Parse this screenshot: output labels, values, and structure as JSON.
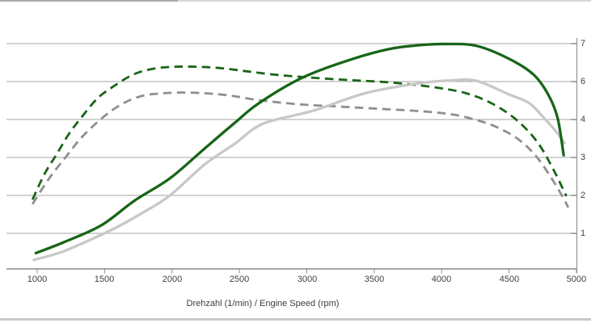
{
  "window": {
    "edge_strip_top_left_color": "#a9a9a9",
    "edge_strip_top_right_color": "#d6d6d6",
    "edge_strip_bottom_color": "#c9c9c9"
  },
  "chart_data": {
    "type": "line",
    "title": "",
    "xlabel": "Drehzahl (1/min) / Engine Speed (rpm)",
    "ylabel": "",
    "xlim": [
      770,
      5000
    ],
    "ylim": [
      0,
      6.2
    ],
    "grid": "horizontal gridlines on",
    "legend": "none",
    "x_ticks": [
      1000,
      1500,
      2000,
      2500,
      3000,
      3500,
      4000,
      4500,
      5000
    ],
    "x_tick_labels": [
      "1000",
      "1500",
      "2000",
      "2500",
      "3000",
      "3500",
      "4000",
      "4500",
      "5000"
    ],
    "right_axis_labels": [
      "7",
      "6",
      "4",
      "3",
      "2",
      "1"
    ],
    "right_axis_label_gridline_values": [
      6,
      5,
      4,
      3,
      2,
      1
    ],
    "gridline_values": [
      1,
      2,
      3,
      4,
      5,
      6
    ],
    "colors": {
      "dark_green": "#176517",
      "light_gray": "#c8c8c8",
      "mid_gray": "#8f8f8f",
      "gridline": "#a6a6a6",
      "axis": "#999999",
      "tick": "#8c8c8c",
      "label_text": "#3f3f3f"
    },
    "series": [
      {
        "name": "gray-dashed-curve",
        "style": "dashed",
        "color": "#8f8f8f",
        "points": [
          [
            965,
            1.77
          ],
          [
            1085,
            2.43
          ],
          [
            1205,
            2.98
          ],
          [
            1325,
            3.51
          ],
          [
            1475,
            4.02
          ],
          [
            1625,
            4.4
          ],
          [
            1775,
            4.62
          ],
          [
            1925,
            4.69
          ],
          [
            2075,
            4.71
          ],
          [
            2255,
            4.69
          ],
          [
            2435,
            4.63
          ],
          [
            2645,
            4.51
          ],
          [
            2945,
            4.4
          ],
          [
            3245,
            4.34
          ],
          [
            3545,
            4.28
          ],
          [
            3845,
            4.22
          ],
          [
            4085,
            4.13
          ],
          [
            4265,
            3.98
          ],
          [
            4415,
            3.79
          ],
          [
            4565,
            3.49
          ],
          [
            4695,
            3.06
          ],
          [
            4805,
            2.51
          ],
          [
            4895,
            1.98
          ],
          [
            4940,
            1.68
          ]
        ]
      },
      {
        "name": "green-dashed-curve",
        "style": "dashed",
        "color": "#176517",
        "points": [
          [
            965,
            1.89
          ],
          [
            1055,
            2.57
          ],
          [
            1145,
            3.09
          ],
          [
            1235,
            3.62
          ],
          [
            1325,
            4.04
          ],
          [
            1445,
            4.55
          ],
          [
            1565,
            4.87
          ],
          [
            1715,
            5.19
          ],
          [
            1865,
            5.34
          ],
          [
            2015,
            5.39
          ],
          [
            2195,
            5.39
          ],
          [
            2375,
            5.35
          ],
          [
            2555,
            5.27
          ],
          [
            2765,
            5.18
          ],
          [
            3005,
            5.11
          ],
          [
            3305,
            5.04
          ],
          [
            3605,
            4.98
          ],
          [
            3905,
            4.87
          ],
          [
            4175,
            4.7
          ],
          [
            4385,
            4.4
          ],
          [
            4565,
            3.96
          ],
          [
            4715,
            3.38
          ],
          [
            4835,
            2.64
          ],
          [
            4925,
            1.98
          ]
        ]
      },
      {
        "name": "gray-solid-curve",
        "style": "solid",
        "color": "#c8c8c8",
        "points": [
          [
            975,
            0.3
          ],
          [
            1175,
            0.5
          ],
          [
            1375,
            0.8
          ],
          [
            1595,
            1.17
          ],
          [
            1790,
            1.56
          ],
          [
            1985,
            2.0
          ],
          [
            2240,
            2.81
          ],
          [
            2465,
            3.36
          ],
          [
            2675,
            3.89
          ],
          [
            3045,
            4.23
          ],
          [
            3440,
            4.7
          ],
          [
            3840,
            4.96
          ],
          [
            4080,
            5.03
          ],
          [
            4260,
            5.02
          ],
          [
            4500,
            4.66
          ],
          [
            4650,
            4.43
          ],
          [
            4770,
            4.0
          ],
          [
            4850,
            3.68
          ],
          [
            4910,
            3.38
          ]
        ]
      },
      {
        "name": "green-solid-curve",
        "style": "solid",
        "color": "#176517",
        "points": [
          [
            990,
            0.48
          ],
          [
            1200,
            0.77
          ],
          [
            1475,
            1.21
          ],
          [
            1725,
            1.87
          ],
          [
            1985,
            2.45
          ],
          [
            2240,
            3.23
          ],
          [
            2465,
            3.91
          ],
          [
            2645,
            4.43
          ],
          [
            2960,
            5.09
          ],
          [
            3300,
            5.55
          ],
          [
            3600,
            5.85
          ],
          [
            3840,
            5.96
          ],
          [
            4050,
            5.99
          ],
          [
            4260,
            5.94
          ],
          [
            4500,
            5.6
          ],
          [
            4680,
            5.19
          ],
          [
            4790,
            4.66
          ],
          [
            4860,
            4.04
          ],
          [
            4905,
            3.06
          ]
        ]
      }
    ]
  }
}
